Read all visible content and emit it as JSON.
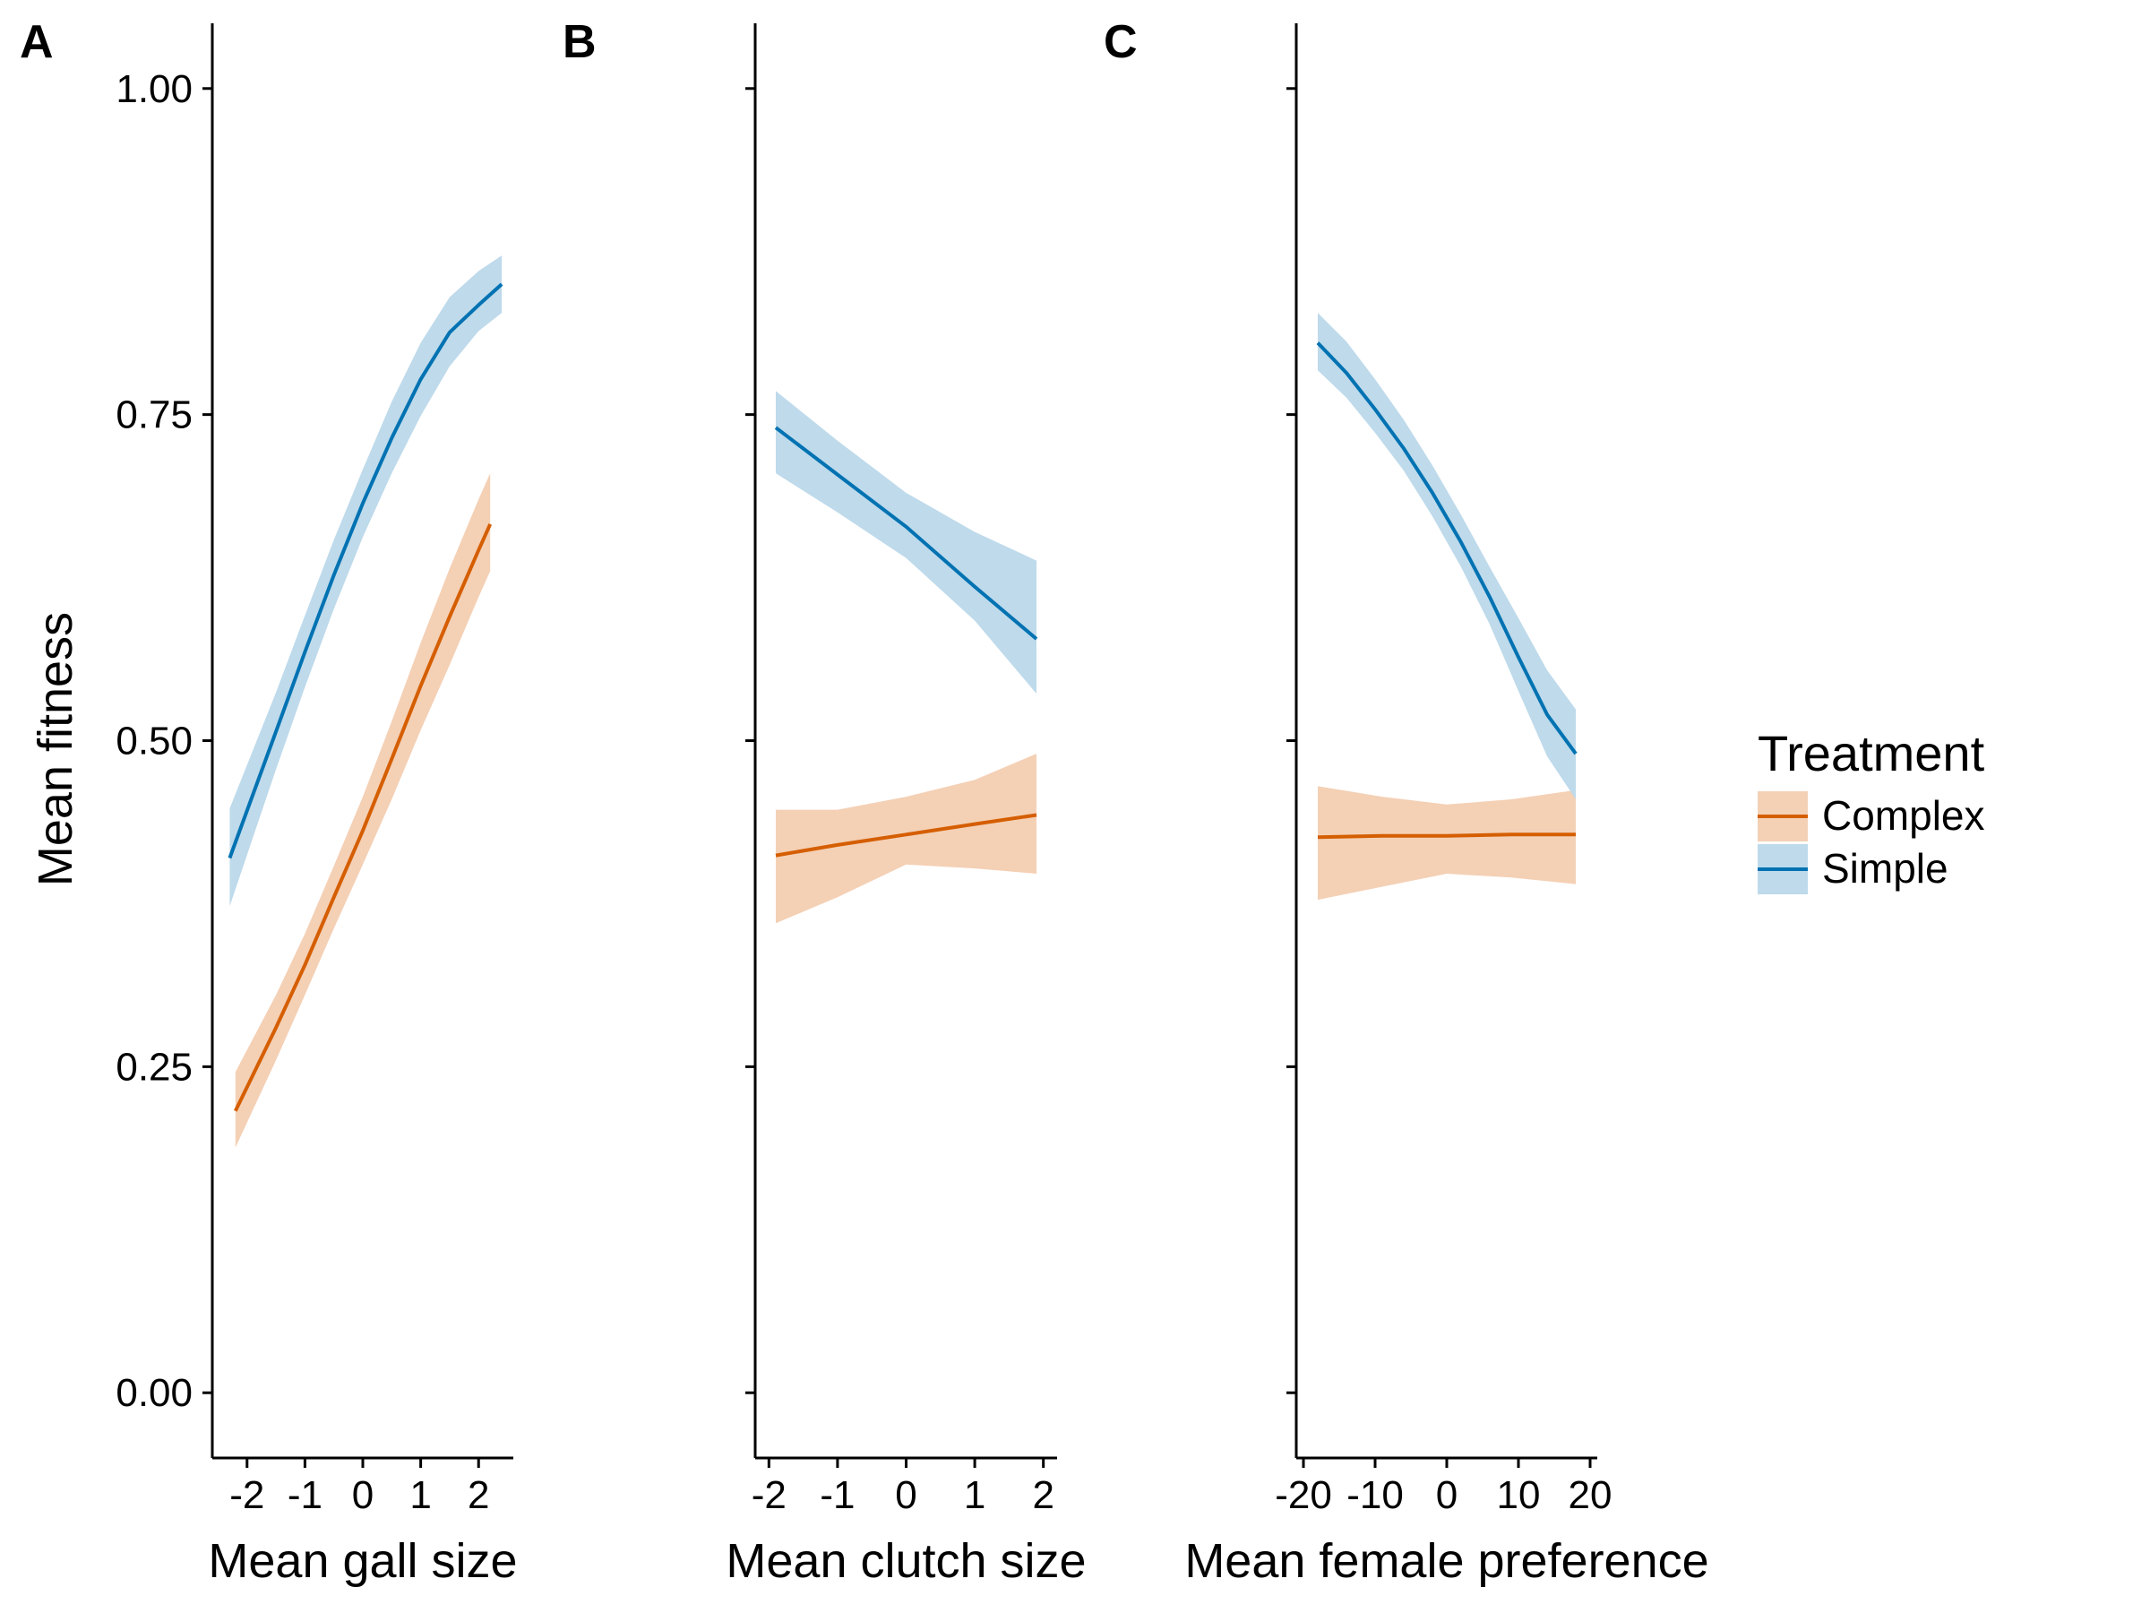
{
  "figure": {
    "ylabel": "Mean fitness",
    "legend": {
      "title": "Treatment",
      "placement": "right",
      "entries": [
        {
          "name": "Complex",
          "line_color": "#D55E00",
          "band_color": "#F4D0B5"
        },
        {
          "name": "Simple",
          "line_color": "#0072B2",
          "band_color": "#BEDAEB"
        }
      ]
    }
  },
  "chart_data": [
    {
      "type": "line",
      "panel_label": "A",
      "title": "",
      "xlabel": "Mean gall size",
      "ylabel": "Mean fitness",
      "xlim": [
        -2.6,
        2.6
      ],
      "ylim": [
        -0.05,
        1.05
      ],
      "xticks": [
        -2,
        -1,
        0,
        1,
        2
      ],
      "xtick_labels": [
        "-2",
        "-1",
        "0",
        "1",
        "2"
      ],
      "yticks": [
        0,
        0.25,
        0.5,
        0.75,
        1
      ],
      "ytick_labels": [
        "0.00",
        "0.25",
        "0.50",
        "0.75",
        "1.00"
      ],
      "series": [
        {
          "name": "Complex",
          "x": [
            -2.2,
            -1.5,
            -1.0,
            -0.5,
            0.0,
            0.5,
            1.0,
            1.5,
            2.0,
            2.2
          ],
          "y": [
            0.216,
            0.28,
            0.328,
            0.38,
            0.431,
            0.486,
            0.542,
            0.595,
            0.646,
            0.666
          ],
          "lower": [
            0.188,
            0.255,
            0.305,
            0.356,
            0.405,
            0.455,
            0.508,
            0.558,
            0.61,
            0.63
          ],
          "upper": [
            0.246,
            0.305,
            0.352,
            0.404,
            0.457,
            0.515,
            0.575,
            0.632,
            0.685,
            0.705
          ]
        },
        {
          "name": "Simple",
          "x": [
            -2.3,
            -1.5,
            -1.0,
            -0.5,
            0.0,
            0.5,
            1.0,
            1.5,
            2.0,
            2.4
          ],
          "y": [
            0.41,
            0.507,
            0.568,
            0.627,
            0.682,
            0.732,
            0.777,
            0.813,
            0.834,
            0.85
          ],
          "lower": [
            0.373,
            0.478,
            0.541,
            0.601,
            0.656,
            0.705,
            0.749,
            0.787,
            0.814,
            0.828
          ],
          "upper": [
            0.448,
            0.537,
            0.596,
            0.654,
            0.708,
            0.76,
            0.805,
            0.84,
            0.86,
            0.872
          ]
        }
      ]
    },
    {
      "type": "line",
      "panel_label": "B",
      "title": "",
      "xlabel": "Mean clutch size",
      "ylabel": "",
      "xlim": [
        -2.2,
        2.2
      ],
      "ylim": [
        -0.05,
        1.05
      ],
      "xticks": [
        -2,
        -1,
        0,
        1,
        2
      ],
      "xtick_labels": [
        "-2",
        "-1",
        "0",
        "1",
        "2"
      ],
      "yticks": [
        0,
        0.25,
        0.5,
        0.75,
        1
      ],
      "ytick_labels": [
        "",
        "",
        "",
        "",
        ""
      ],
      "series": [
        {
          "name": "Complex",
          "x": [
            -1.9,
            -1.0,
            0.0,
            1.0,
            1.9
          ],
          "y": [
            0.412,
            0.42,
            0.428,
            0.436,
            0.443
          ],
          "lower": [
            0.36,
            0.38,
            0.405,
            0.402,
            0.398
          ],
          "upper": [
            0.447,
            0.447,
            0.457,
            0.47,
            0.49
          ]
        },
        {
          "name": "Simple",
          "x": [
            -1.9,
            -1.0,
            0.0,
            1.0,
            1.9
          ],
          "y": [
            0.74,
            0.704,
            0.664,
            0.618,
            0.578
          ],
          "lower": [
            0.705,
            0.675,
            0.64,
            0.592,
            0.536
          ],
          "upper": [
            0.768,
            0.73,
            0.69,
            0.66,
            0.638
          ]
        }
      ]
    },
    {
      "type": "line",
      "panel_label": "C",
      "title": "",
      "xlabel": "Mean female preference",
      "ylabel": "",
      "xlim": [
        -21,
        21
      ],
      "ylim": [
        -0.05,
        1.05
      ],
      "xticks": [
        -20,
        -10,
        0,
        10,
        20
      ],
      "xtick_labels": [
        "-20",
        "-10",
        "0",
        "10",
        "20"
      ],
      "yticks": [
        0,
        0.25,
        0.5,
        0.75,
        1
      ],
      "ytick_labels": [
        "",
        "",
        "",
        "",
        ""
      ],
      "series": [
        {
          "name": "Complex",
          "x": [
            -18,
            -9,
            0,
            9,
            18
          ],
          "y": [
            0.426,
            0.427,
            0.427,
            0.428,
            0.428
          ],
          "lower": [
            0.378,
            0.388,
            0.398,
            0.395,
            0.39
          ],
          "upper": [
            0.465,
            0.457,
            0.451,
            0.455,
            0.462
          ]
        },
        {
          "name": "Simple",
          "x": [
            -18,
            -14,
            -10,
            -6,
            -2,
            2,
            6,
            10,
            14,
            18
          ],
          "y": [
            0.805,
            0.782,
            0.754,
            0.724,
            0.69,
            0.652,
            0.61,
            0.564,
            0.52,
            0.49
          ],
          "lower": [
            0.784,
            0.763,
            0.736,
            0.707,
            0.672,
            0.633,
            0.589,
            0.538,
            0.488,
            0.455
          ],
          "upper": [
            0.828,
            0.806,
            0.777,
            0.746,
            0.711,
            0.673,
            0.633,
            0.594,
            0.554,
            0.524
          ]
        }
      ]
    }
  ]
}
